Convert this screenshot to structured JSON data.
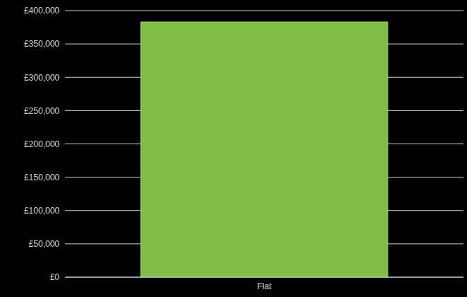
{
  "chart_data": {
    "type": "bar",
    "categories": [
      "Flat"
    ],
    "values": [
      383000
    ],
    "color": "#80bd45",
    "ylim": [
      0,
      400000
    ],
    "yticks": [
      {
        "value": 0,
        "label": "£0"
      },
      {
        "value": 50000,
        "label": "£50,000"
      },
      {
        "value": 100000,
        "label": "£100,000"
      },
      {
        "value": 150000,
        "label": "£150,000"
      },
      {
        "value": 200000,
        "label": "£200,000"
      },
      {
        "value": 250000,
        "label": "£250,000"
      },
      {
        "value": 300000,
        "label": "£300,000"
      },
      {
        "value": 350000,
        "label": "£350,000"
      },
      {
        "value": 400000,
        "label": "£400,000"
      }
    ],
    "grid": true
  }
}
